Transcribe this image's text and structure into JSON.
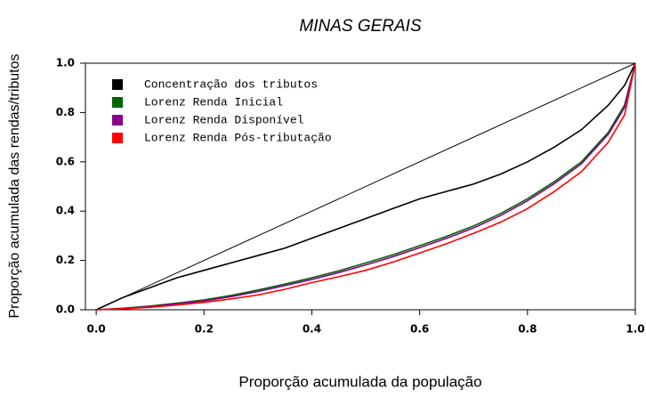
{
  "chart_data": {
    "type": "line",
    "title": "MINAS GERAIS",
    "xlabel": "Proporção acumulada da população",
    "ylabel": "Proporção acumulada das rendas/tributos",
    "x": [
      0,
      0.05,
      0.1,
      0.15,
      0.2,
      0.25,
      0.3,
      0.35,
      0.4,
      0.45,
      0.5,
      0.55,
      0.6,
      0.65,
      0.7,
      0.75,
      0.8,
      0.85,
      0.9,
      0.95,
      0.98,
      1
    ],
    "series": [
      {
        "name": "Concentração dos tributos",
        "color": "#000000",
        "values": [
          0,
          0.05,
          0.09,
          0.13,
          0.16,
          0.19,
          0.22,
          0.25,
          0.29,
          0.33,
          0.37,
          0.41,
          0.45,
          0.48,
          0.51,
          0.55,
          0.6,
          0.66,
          0.73,
          0.83,
          0.91,
          1
        ]
      },
      {
        "name": "Lorenz Renda Inicial",
        "color": "#006400",
        "values": [
          0,
          0.006,
          0.015,
          0.027,
          0.04,
          0.058,
          0.08,
          0.104,
          0.13,
          0.158,
          0.19,
          0.223,
          0.26,
          0.298,
          0.34,
          0.39,
          0.45,
          0.52,
          0.6,
          0.72,
          0.83,
          1
        ]
      },
      {
        "name": "Lorenz Renda Disponível",
        "color": "#8b008b",
        "values": [
          0,
          0.005,
          0.013,
          0.024,
          0.036,
          0.053,
          0.074,
          0.098,
          0.123,
          0.151,
          0.182,
          0.215,
          0.252,
          0.29,
          0.332,
          0.382,
          0.442,
          0.512,
          0.592,
          0.712,
          0.82,
          1
        ]
      },
      {
        "name": "Lorenz Renda Pós-tributação",
        "color": "#ff0000",
        "values": [
          0,
          0.004,
          0.01,
          0.019,
          0.03,
          0.044,
          0.06,
          0.083,
          0.11,
          0.134,
          0.16,
          0.193,
          0.23,
          0.268,
          0.31,
          0.355,
          0.41,
          0.48,
          0.56,
          0.68,
          0.79,
          1
        ]
      }
    ],
    "diagonal": {
      "x": [
        0,
        1
      ],
      "y": [
        0,
        1
      ],
      "color": "#000000"
    },
    "xlim": [
      -0.02,
      1.0
    ],
    "ylim": [
      0,
      1.0
    ],
    "xticks": [
      {
        "value": 0,
        "label": "0.0"
      },
      0.2,
      0.4,
      0.6,
      0.8,
      {
        "value": 1,
        "label": "1.0"
      }
    ],
    "yticks": [
      {
        "value": 0,
        "label": "0.0"
      },
      0.2,
      0.4,
      0.6,
      0.8,
      {
        "value": 1,
        "label": "1.0"
      }
    ],
    "legend": "top-left",
    "grid": false
  }
}
